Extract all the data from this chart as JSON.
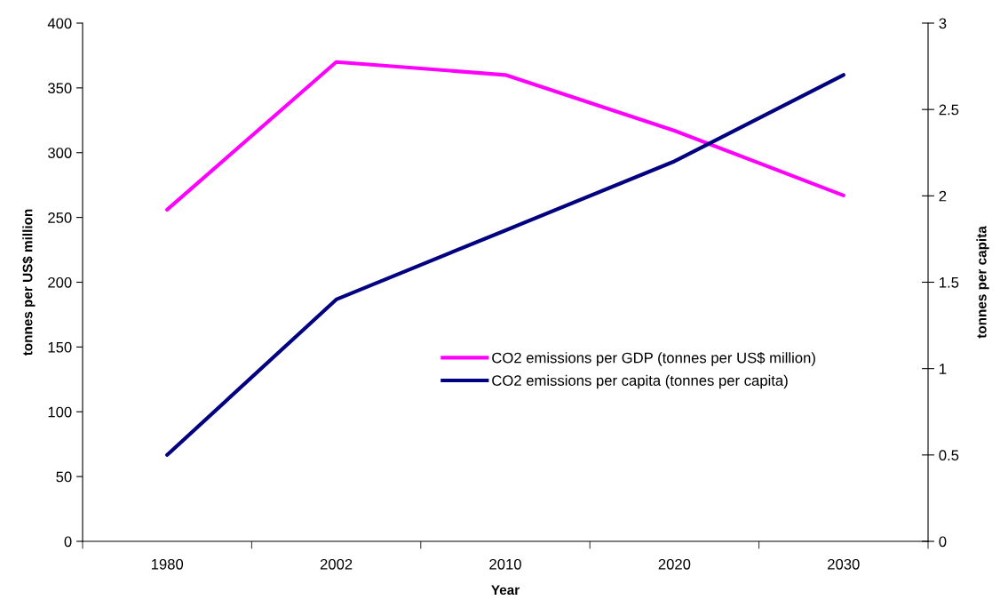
{
  "chart_data": {
    "type": "line",
    "xlabel": "Year",
    "ylabel": "tonnes per US$ million",
    "y2label": "tonnes per capita",
    "categories": [
      "1980",
      "2002",
      "2010",
      "2020",
      "2030"
    ],
    "series": [
      {
        "name": "CO2 emissions per GDP (tonnes per US$ million)",
        "color": "#ff00ff",
        "values": [
          256,
          370,
          360,
          317,
          267
        ]
      },
      {
        "name": "CO2 emissions per capita (tonnes per capita)",
        "color": "#000080",
        "values": [
          0.5,
          1.4,
          1.8,
          2.2,
          2.7
        ],
        "axis": "y2"
      }
    ],
    "ylim": [
      0,
      400
    ],
    "yticks": [
      0,
      50,
      100,
      150,
      200,
      250,
      300,
      350,
      400
    ],
    "y2lim": [
      0,
      3
    ],
    "y2ticks": [
      0,
      0.5,
      1,
      1.5,
      2,
      2.5,
      3
    ],
    "legend": "center right",
    "grid": false,
    "marker": "none",
    "line_style": "solid"
  }
}
